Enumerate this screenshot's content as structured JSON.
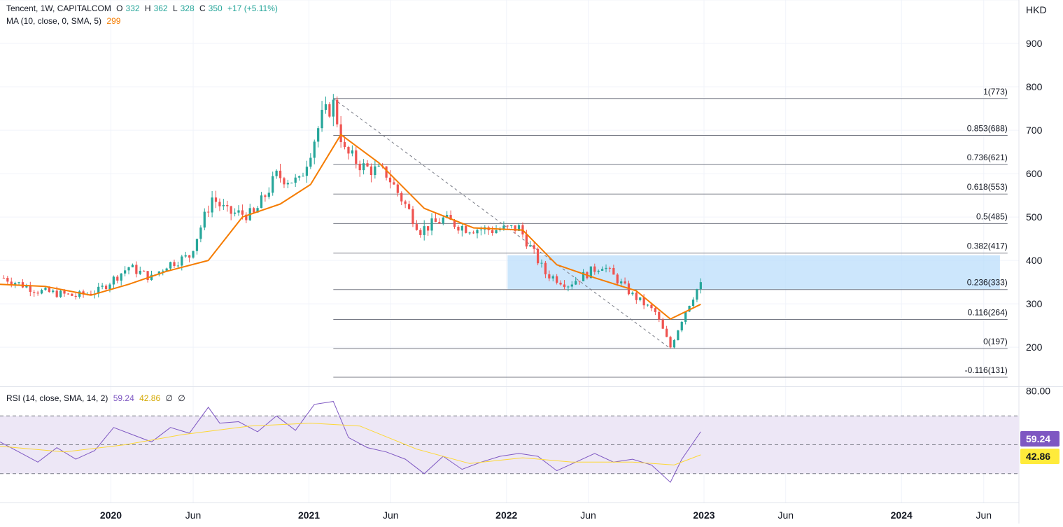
{
  "header": {
    "symbol": "Tencent, 1W, CAPITALCOM",
    "open_label": "O",
    "open": "332",
    "high_label": "H",
    "high": "362",
    "low_label": "L",
    "low": "328",
    "close_label": "C",
    "close": "350",
    "change": "+17 (+5.11%)",
    "ma_label": "MA (10, close, 0, SMA, 5)",
    "ma_value": "299",
    "rsi_label": "RSI (14, close, SMA, 14, 2)",
    "rsi_value": "59.24",
    "rsi_ma_value": "42.86",
    "rsi_extra_1": "∅",
    "rsi_extra_2": "∅",
    "currency": "HKD"
  },
  "colors": {
    "up": "#26a69a",
    "down": "#ef5350",
    "ma": "#f57c00",
    "rsi": "#7e57c2",
    "rsi_ma": "#fdd835",
    "zone": "#bbdefb",
    "rsi_band": "#ede7f6",
    "grid": "#f0f3fa",
    "fib_line": "#787b86"
  },
  "chart_data": [
    {
      "type": "candlestick",
      "title": "Tencent, 1W, CAPITALCOM",
      "ylabel": "HKD",
      "ylim": [
        110,
        1000
      ],
      "y_ticks": [
        "200",
        "300",
        "400",
        "500",
        "600",
        "700",
        "800",
        "900"
      ],
      "x_ticks": [
        {
          "label": "2020",
          "date": "2020-01-01"
        },
        {
          "label": "Jun",
          "date": "2020-06-01"
        },
        {
          "label": "2021",
          "date": "2021-01-01"
        },
        {
          "label": "Jun",
          "date": "2021-06-01"
        },
        {
          "label": "2022",
          "date": "2022-01-01"
        },
        {
          "label": "Jun",
          "date": "2022-06-01"
        },
        {
          "label": "2023",
          "date": "2023-01-01"
        },
        {
          "label": "Jun",
          "date": "2023-06-01"
        },
        {
          "label": "2024",
          "date": "2024-01-01"
        },
        {
          "label": "Jun",
          "date": "2024-06-01"
        }
      ],
      "x_range": [
        "2019-06-10",
        "2024-08-05"
      ],
      "price_path": [
        [
          "2019-06-17",
          360
        ],
        [
          "2019-08-19",
          330
        ],
        [
          "2019-10-28",
          318
        ],
        [
          "2019-12-09",
          330
        ],
        [
          "2020-02-03",
          385
        ],
        [
          "2020-03-16",
          360
        ],
        [
          "2020-04-13",
          390
        ],
        [
          "2020-05-25",
          410
        ],
        [
          "2020-07-06",
          545
        ],
        [
          "2020-08-03",
          510
        ],
        [
          "2020-09-21",
          505
        ],
        [
          "2020-11-02",
          595
        ],
        [
          "2020-12-14",
          580
        ],
        [
          "2021-01-25",
          730
        ],
        [
          "2021-02-15",
          760
        ],
        [
          "2021-03-08",
          650
        ],
        [
          "2021-04-12",
          615
        ],
        [
          "2021-05-24",
          600
        ],
        [
          "2021-07-26",
          470
        ],
        [
          "2021-09-06",
          495
        ],
        [
          "2021-10-18",
          475
        ],
        [
          "2021-12-06",
          470
        ],
        [
          "2022-01-24",
          475
        ],
        [
          "2022-03-14",
          370
        ],
        [
          "2022-04-25",
          345
        ],
        [
          "2022-06-27",
          390
        ],
        [
          "2022-08-22",
          320
        ],
        [
          "2022-10-03",
          280
        ],
        [
          "2022-10-31",
          200
        ],
        [
          "2022-11-28",
          285
        ],
        [
          "2022-12-26",
          350
        ]
      ],
      "moving_average": {
        "name": "MA (10, close, 0, SMA, 5)",
        "last_value": 299,
        "points": [
          [
            "2019-06-10",
            345
          ],
          [
            "2019-09-02",
            340
          ],
          [
            "2019-11-25",
            320
          ],
          [
            "2020-02-03",
            345
          ],
          [
            "2020-04-13",
            375
          ],
          [
            "2020-06-29",
            400
          ],
          [
            "2020-08-31",
            500
          ],
          [
            "2020-11-09",
            530
          ],
          [
            "2021-01-04",
            575
          ],
          [
            "2021-03-01",
            690
          ],
          [
            "2021-05-10",
            625
          ],
          [
            "2021-08-02",
            520
          ],
          [
            "2021-11-01",
            475
          ],
          [
            "2022-01-31",
            470
          ],
          [
            "2022-04-04",
            390
          ],
          [
            "2022-06-13",
            360
          ],
          [
            "2022-08-29",
            330
          ],
          [
            "2022-10-31",
            265
          ],
          [
            "2022-12-26",
            299
          ]
        ]
      },
      "fibonacci": {
        "start_date": "2021-02-15",
        "end_date": "2024-07-15",
        "levels": [
          {
            "label": "1(773)",
            "price": 773
          },
          {
            "label": "0.853(688)",
            "price": 688
          },
          {
            "label": "0.736(621)",
            "price": 621
          },
          {
            "label": "0.618(553)",
            "price": 553
          },
          {
            "label": "0.5(485)",
            "price": 485
          },
          {
            "label": "0.382(417)",
            "price": 417
          },
          {
            "label": "0.236(333)",
            "price": 333
          },
          {
            "label": "0.116(264)",
            "price": 264
          },
          {
            "label": "0(197)",
            "price": 197
          },
          {
            "label": "-0.116(131)",
            "price": 131
          }
        ],
        "trend_line": [
          [
            "2021-02-15",
            773
          ],
          [
            "2022-10-31",
            197
          ]
        ]
      },
      "highlight_zone": {
        "x": [
          "2022-01-03",
          "2024-07-01"
        ],
        "y": [
          333,
          412
        ]
      },
      "last_price": 350
    },
    {
      "type": "line",
      "title": "RSI (14, close, SMA, 14, 2)",
      "y_ticks": [
        "80.00"
      ],
      "ylim": [
        10,
        90
      ],
      "band": [
        30,
        70
      ],
      "mid_line": 50,
      "series": [
        {
          "name": "RSI",
          "last_value": 59.24,
          "points": [
            [
              "2019-06-10",
              52
            ],
            [
              "2019-07-15",
              45
            ],
            [
              "2019-08-19",
              38
            ],
            [
              "2019-09-23",
              48
            ],
            [
              "2019-10-28",
              40
            ],
            [
              "2019-12-02",
              46
            ],
            [
              "2020-01-06",
              62
            ],
            [
              "2020-02-10",
              57
            ],
            [
              "2020-03-16",
              52
            ],
            [
              "2020-04-20",
              62
            ],
            [
              "2020-05-25",
              58
            ],
            [
              "2020-06-29",
              76
            ],
            [
              "2020-07-20",
              65
            ],
            [
              "2020-08-24",
              66
            ],
            [
              "2020-09-28",
              59
            ],
            [
              "2020-11-02",
              70
            ],
            [
              "2020-12-07",
              60
            ],
            [
              "2021-01-11",
              78
            ],
            [
              "2021-02-15",
              80
            ],
            [
              "2021-03-15",
              55
            ],
            [
              "2021-04-19",
              48
            ],
            [
              "2021-05-24",
              45
            ],
            [
              "2021-06-28",
              40
            ],
            [
              "2021-08-02",
              30
            ],
            [
              "2021-09-06",
              42
            ],
            [
              "2021-10-11",
              33
            ],
            [
              "2021-11-15",
              38
            ],
            [
              "2021-12-20",
              42
            ],
            [
              "2022-01-24",
              44
            ],
            [
              "2022-02-28",
              42
            ],
            [
              "2022-04-04",
              32
            ],
            [
              "2022-05-09",
              38
            ],
            [
              "2022-06-13",
              44
            ],
            [
              "2022-07-18",
              38
            ],
            [
              "2022-08-22",
              40
            ],
            [
              "2022-09-26",
              36
            ],
            [
              "2022-10-31",
              24
            ],
            [
              "2022-11-21",
              40
            ],
            [
              "2022-12-26",
              59
            ]
          ]
        },
        {
          "name": "RSI-based MA",
          "last_value": 42.86,
          "points": [
            [
              "2019-06-10",
              49
            ],
            [
              "2019-10-07",
              45
            ],
            [
              "2020-01-27",
              50
            ],
            [
              "2020-05-11",
              57
            ],
            [
              "2020-09-14",
              63
            ],
            [
              "2021-01-04",
              65
            ],
            [
              "2021-04-05",
              63
            ],
            [
              "2021-07-19",
              47
            ],
            [
              "2021-10-25",
              37
            ],
            [
              "2022-01-31",
              41
            ],
            [
              "2022-05-02",
              38
            ],
            [
              "2022-08-22",
              38
            ],
            [
              "2022-11-07",
              36
            ],
            [
              "2022-12-26",
              43
            ]
          ]
        }
      ]
    }
  ]
}
